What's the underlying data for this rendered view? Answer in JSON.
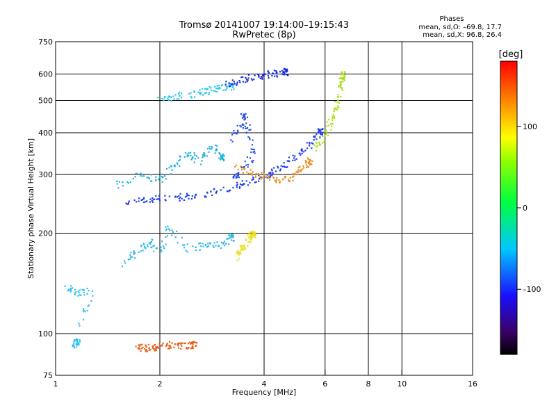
{
  "chart_data": {
    "type": "scatter",
    "title": "Tromsø 20141007 19:14:00–19:15:43",
    "subtitle": "RwPretec (8p)",
    "stats": {
      "heading": "Phases",
      "line1": "mean, sd,O:  –69.8, 17.7",
      "line2": "mean, sd,X:  96.8, 26.4"
    },
    "xlabel": "Frequency [MHz]",
    "ylabel": "Stationary phase Virtual Height [km]",
    "x_scale": "log2",
    "y_scale": "log",
    "xlim": [
      1,
      16
    ],
    "ylim": [
      75,
      750
    ],
    "x_ticks": [
      1,
      2,
      4,
      6,
      8,
      10,
      16
    ],
    "x_tick_labels": [
      "1",
      "2",
      "4",
      "6",
      "8",
      "10",
      "16"
    ],
    "x_gridlines": [
      2,
      4,
      6,
      8,
      10
    ],
    "y_ticks": [
      75,
      100,
      200,
      300,
      400,
      500,
      600,
      750
    ],
    "y_tick_labels": [
      "75",
      "100",
      "200",
      "300",
      "400",
      "500",
      "600",
      "750"
    ],
    "y_gridlines": [
      100,
      200,
      300,
      400,
      500,
      600
    ],
    "grid": true,
    "colorbar": {
      "label": "[deg]",
      "min": -180,
      "max": 180,
      "ticks": [
        100,
        0,
        -100
      ],
      "tick_labels": [
        "100",
        "0",
        "–100"
      ],
      "colormap": "rainbow (black → purple → blue → cyan → green → yellow → red)"
    },
    "series": [
      {
        "desc_color": "#1e3cf0",
        "phase": -110,
        "points": [
          [
            1.55,
            250
          ],
          [
            1.8,
            252
          ],
          [
            2.0,
            255
          ],
          [
            2.3,
            258
          ],
          [
            2.6,
            262
          ],
          [
            3.0,
            270
          ],
          [
            3.4,
            280
          ],
          [
            3.8,
            292
          ],
          [
            4.2,
            305
          ],
          [
            4.6,
            322
          ],
          [
            5.0,
            345
          ],
          [
            5.4,
            372
          ],
          [
            5.8,
            405
          ]
        ]
      },
      {
        "desc_color": "#e89020",
        "phase": 130,
        "points": [
          [
            3.3,
            318
          ],
          [
            3.6,
            308
          ],
          [
            4.0,
            298
          ],
          [
            4.4,
            290
          ],
          [
            4.8,
            295
          ],
          [
            5.1,
            310
          ],
          [
            5.4,
            330
          ]
        ]
      },
      {
        "desc_color": "#a8e020",
        "phase": 80,
        "points": [
          [
            5.6,
            360
          ],
          [
            5.9,
            390
          ],
          [
            6.2,
            430
          ],
          [
            6.4,
            470
          ],
          [
            6.55,
            520
          ],
          [
            6.65,
            560
          ],
          [
            6.7,
            600
          ]
        ]
      },
      {
        "desc_color": "#20b0e0",
        "phase": -40,
        "points": [
          [
            1.5,
            280
          ],
          [
            1.75,
            300
          ],
          [
            2.0,
            290
          ],
          [
            2.2,
            320
          ],
          [
            2.4,
            350
          ],
          [
            2.6,
            330
          ],
          [
            2.8,
            370
          ],
          [
            3.0,
            340
          ]
        ]
      },
      {
        "desc_color": "#28c8e8",
        "phase": -35,
        "points": [
          [
            2.0,
            505
          ],
          [
            2.2,
            515
          ],
          [
            2.5,
            525
          ],
          [
            2.7,
            535
          ],
          [
            2.9,
            545
          ],
          [
            3.2,
            552
          ]
        ]
      },
      {
        "desc_color": "#1a30d8",
        "phase": -115,
        "points": [
          [
            3.1,
            560
          ],
          [
            3.4,
            575
          ],
          [
            3.7,
            590
          ],
          [
            4.0,
            598
          ],
          [
            4.3,
            605
          ],
          [
            4.6,
            612
          ]
        ]
      },
      {
        "desc_color": "#2850e8",
        "phase": -100,
        "points": [
          [
            3.2,
            380
          ],
          [
            3.4,
            420
          ],
          [
            3.5,
            460
          ],
          [
            3.6,
            400
          ],
          [
            3.7,
            340
          ],
          [
            3.3,
            300
          ]
        ]
      },
      {
        "desc_color": "#30b8e8",
        "phase": -35,
        "points": [
          [
            1.55,
            160
          ],
          [
            1.7,
            175
          ],
          [
            1.85,
            190
          ],
          [
            2.0,
            175
          ],
          [
            2.1,
            210
          ],
          [
            2.4,
            180
          ],
          [
            2.7,
            185
          ],
          [
            3.0,
            185
          ],
          [
            3.2,
            195
          ]
        ]
      },
      {
        "desc_color": "#e8e020",
        "phase": 95,
        "points": [
          [
            3.3,
            170
          ],
          [
            3.4,
            178
          ],
          [
            3.5,
            186
          ],
          [
            3.6,
            195
          ],
          [
            3.7,
            200
          ]
        ]
      },
      {
        "desc_color": "#e86018",
        "phase": 150,
        "points": [
          [
            1.7,
            91
          ],
          [
            1.8,
            91
          ],
          [
            1.9,
            91
          ],
          [
            2.0,
            92
          ],
          [
            2.15,
            93
          ],
          [
            2.3,
            92
          ],
          [
            2.5,
            93
          ]
        ]
      },
      {
        "desc_color": "#30c0f0",
        "phase": -30,
        "points": [
          [
            1.07,
            140
          ],
          [
            1.15,
            133
          ],
          [
            1.27,
            135
          ],
          [
            1.12,
            93
          ],
          [
            1.15,
            95
          ]
        ]
      }
    ]
  }
}
